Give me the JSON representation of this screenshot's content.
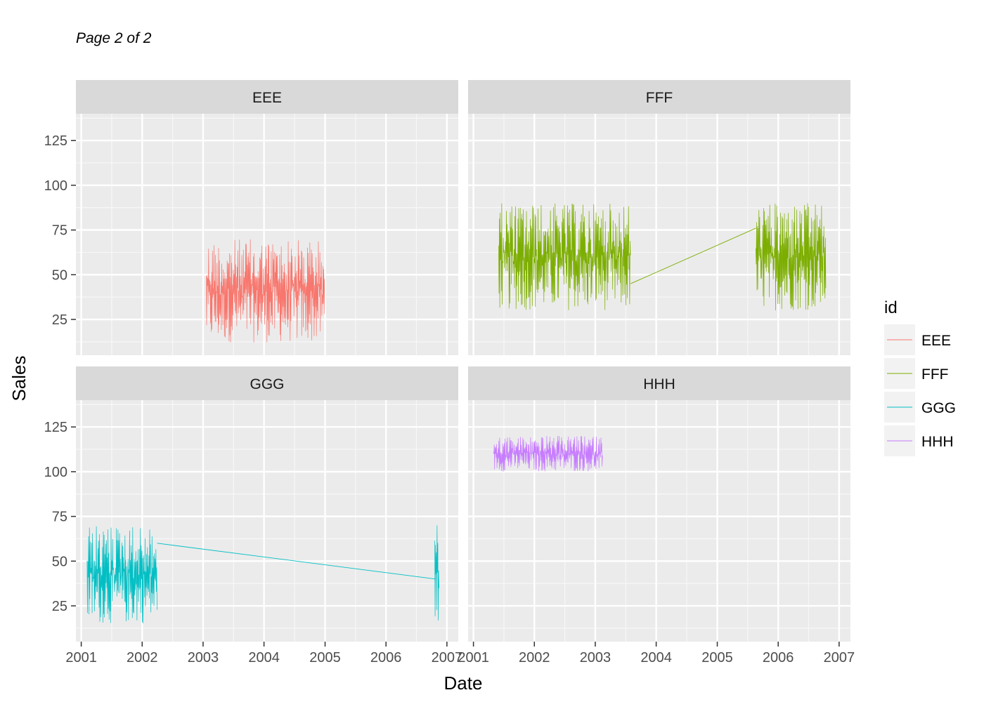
{
  "page_label": "Page 2 of 2",
  "chart_data": {
    "type": "line",
    "facet_layout": "2x2",
    "xlabel": "Date",
    "ylabel": "Sales",
    "x_ticks": [
      "2001",
      "2002",
      "2003",
      "2004",
      "2005",
      "2006",
      "2007"
    ],
    "x_range": [
      "2000-11-30",
      "2007-03-10"
    ],
    "y_ticks": [
      25,
      50,
      75,
      100,
      125
    ],
    "y_range": [
      5,
      140
    ],
    "grid": true,
    "legend": {
      "title": "id",
      "placement": "right",
      "entries": [
        {
          "label": "EEE",
          "color": "#F8766D"
        },
        {
          "label": "FFF",
          "color": "#7CAE00"
        },
        {
          "label": "GGG",
          "color": "#00BFC4"
        },
        {
          "label": "HHH",
          "color": "#C77CFF"
        }
      ]
    },
    "panels": [
      {
        "strip": "EEE",
        "color": "#F8766D",
        "description": "dense daily series oscillating between about 12 and 70",
        "segments": [
          {
            "start": "2003-01-20",
            "end": "2004-12-31",
            "min": 12,
            "max": 70
          }
        ],
        "connectors": []
      },
      {
        "strip": "FFF",
        "color": "#7CAE00",
        "segments": [
          {
            "start": "2001-06-01",
            "end": "2003-08-01",
            "min": 30,
            "max": 90
          },
          {
            "start": "2005-08-20",
            "end": "2006-10-15",
            "min": 30,
            "max": 90
          }
        ],
        "connectors": [
          {
            "from": [
              "2003-08-01",
              45
            ],
            "to": [
              "2005-08-20",
              76
            ]
          }
        ]
      },
      {
        "strip": "GGG",
        "color": "#00BFC4",
        "segments": [
          {
            "start": "2001-02-05",
            "end": "2002-04-01",
            "min": 15,
            "max": 70
          },
          {
            "start": "2006-10-20",
            "end": "2006-11-15",
            "min": 16,
            "max": 70
          }
        ],
        "connectors": [
          {
            "from": [
              "2002-04-01",
              60
            ],
            "to": [
              "2006-10-25",
              40
            ]
          }
        ]
      },
      {
        "strip": "HHH",
        "color": "#C77CFF",
        "segments": [
          {
            "start": "2001-05-01",
            "end": "2003-02-15",
            "min": 100,
            "max": 120
          }
        ],
        "connectors": []
      }
    ]
  }
}
